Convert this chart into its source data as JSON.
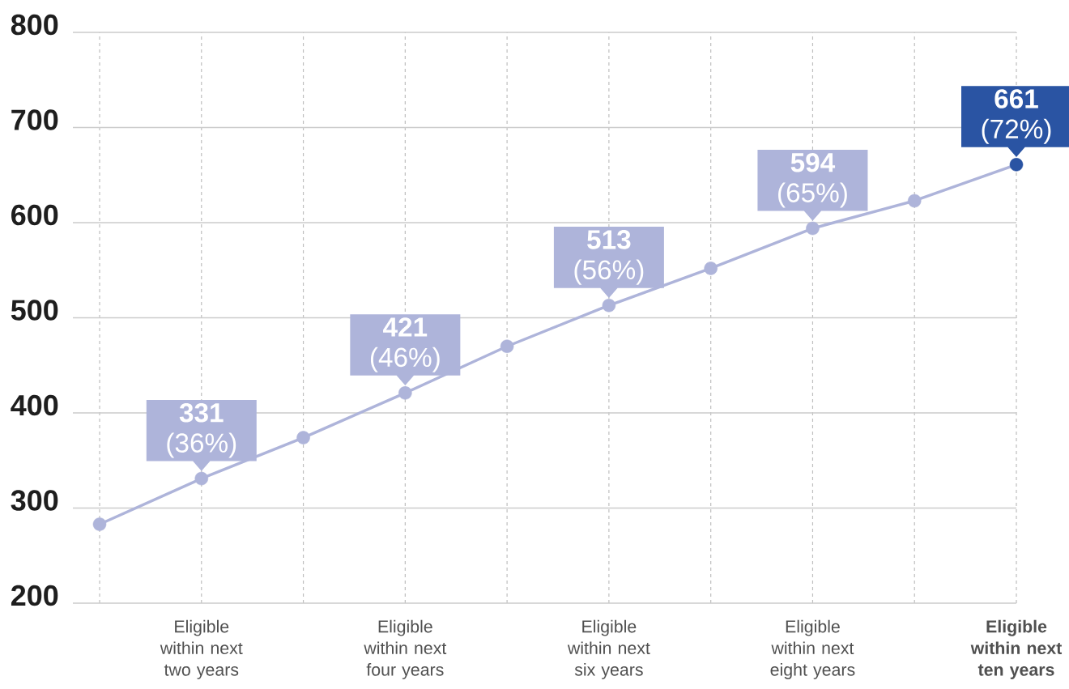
{
  "chart_data": {
    "type": "line",
    "categories": [
      null,
      "Eligible within next two years",
      null,
      "Eligible within next four years",
      null,
      "Eligible within next six years",
      null,
      "Eligible within next eight years",
      null,
      "**Eligible within next ten years**"
    ],
    "series": [
      {
        "color": "#aeb4da",
        "colors": [
          "#aeb4da",
          "#aeb4da",
          "#aeb4da",
          "#aeb4da",
          "#aeb4da",
          "#aeb4da",
          "#aeb4da",
          "#aeb4da",
          "#aeb4da",
          "#2a54a3"
        ],
        "values": [
          283,
          331,
          374,
          421,
          470,
          513,
          552,
          594,
          623,
          661
        ],
        "value_labels": [
          null,
          "**331** (36%)",
          null,
          "**421** (46%)",
          null,
          "**513** (56%)",
          null,
          "**594** (65%)",
          null,
          "**661** (72%)"
        ]
      }
    ],
    "ylim": [
      200,
      800
    ],
    "yticks": [
      200,
      300,
      400,
      500,
      600,
      700,
      800
    ],
    "grid": true,
    "marker": "circle",
    "line_style": "solid"
  }
}
